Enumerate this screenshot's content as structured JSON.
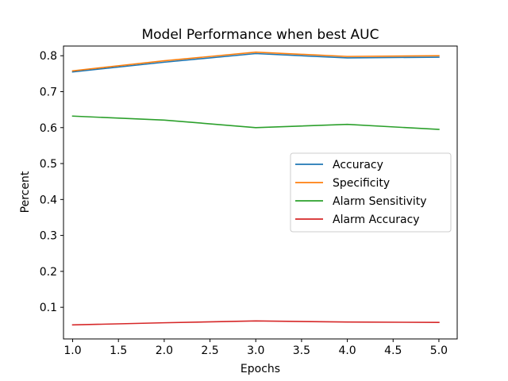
{
  "chart_data": {
    "type": "line",
    "title": "Model Performance when best AUC",
    "xlabel": "Epochs",
    "ylabel": "Percent",
    "x": [
      1.0,
      2.0,
      3.0,
      4.0,
      5.0
    ],
    "xlim": [
      0.9,
      5.2
    ],
    "ylim": [
      0.012,
      0.827
    ],
    "xticks": [
      "1.0",
      "1.5",
      "2.0",
      "2.5",
      "3.0",
      "3.5",
      "4.0",
      "4.5",
      "5.0"
    ],
    "xtick_values": [
      1.0,
      1.5,
      2.0,
      2.5,
      3.0,
      3.5,
      4.0,
      4.5,
      5.0
    ],
    "yticks": [
      "0.1",
      "0.2",
      "0.3",
      "0.4",
      "0.5",
      "0.6",
      "0.7",
      "0.8"
    ],
    "ytick_values": [
      0.1,
      0.2,
      0.3,
      0.4,
      0.5,
      0.6,
      0.7,
      0.8
    ],
    "grid": false,
    "legend_position": "center-right",
    "series": [
      {
        "name": "Accuracy",
        "color": "#1f77b4",
        "values": [
          0.755,
          0.782,
          0.806,
          0.794,
          0.796
        ]
      },
      {
        "name": "Specificity",
        "color": "#ff7f0e",
        "values": [
          0.758,
          0.786,
          0.81,
          0.798,
          0.8
        ]
      },
      {
        "name": "Alarm Sensitivity",
        "color": "#2ca02c",
        "values": [
          0.632,
          0.621,
          0.6,
          0.609,
          0.595
        ]
      },
      {
        "name": "Alarm Accuracy",
        "color": "#d62728",
        "values": [
          0.051,
          0.057,
          0.062,
          0.059,
          0.058
        ]
      }
    ]
  }
}
